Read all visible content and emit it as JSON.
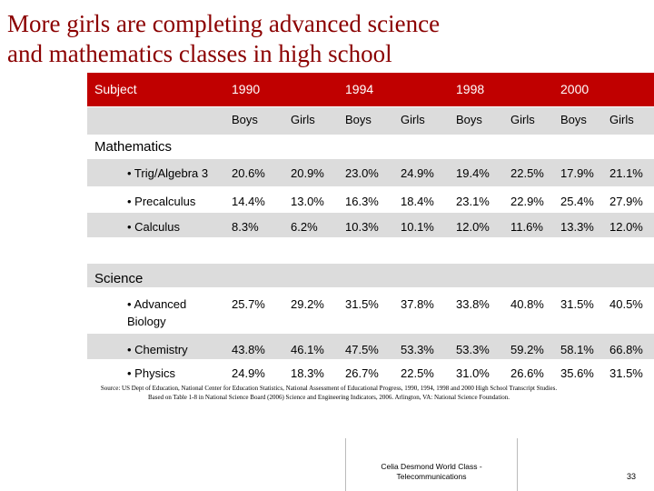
{
  "title": {
    "line1": "More girls are completing advanced science",
    "line2": "and mathematics classes in high school"
  },
  "table": {
    "subject_header": "Subject",
    "years": [
      "1990",
      "1994",
      "1998",
      "2000"
    ],
    "sex_headers": [
      "Boys",
      "Girls",
      "Boys",
      "Girls",
      "Boys",
      "Girls",
      "Boys",
      "Girls"
    ],
    "sections": [
      {
        "name": "Mathematics",
        "rows": [
          {
            "label": "• Trig/Algebra 3",
            "values": [
              "20.6%",
              "20.9%",
              "23.0%",
              "24.9%",
              "19.4%",
              "22.5%",
              "17.9%",
              "21.1%"
            ]
          },
          {
            "label": "• Precalculus",
            "values": [
              "14.4%",
              "13.0%",
              "16.3%",
              "18.4%",
              "23.1%",
              "22.9%",
              "25.4%",
              "27.9%"
            ]
          },
          {
            "label": "• Calculus",
            "values": [
              "8.3%",
              "6.2%",
              "10.3%",
              "10.1%",
              "12.0%",
              "11.6%",
              "13.3%",
              "12.0%"
            ]
          }
        ]
      },
      {
        "name": "Science",
        "rows": [
          {
            "label": "• Advanced Biology",
            "values": [
              "25.7%",
              "29.2%",
              "31.5%",
              "37.8%",
              "33.8%",
              "40.8%",
              "31.5%",
              "40.5%"
            ]
          },
          {
            "label": "• Chemistry",
            "values": [
              "43.8%",
              "46.1%",
              "47.5%",
              "53.3%",
              "53.3%",
              "59.2%",
              "58.1%",
              "66.8%"
            ]
          },
          {
            "label": "• Physics",
            "values": [
              "24.9%",
              "18.3%",
              "26.7%",
              "22.5%",
              "31.0%",
              "26.6%",
              "35.6%",
              "31.5%"
            ]
          }
        ]
      }
    ]
  },
  "source": {
    "line1": "Source: US Dept of Education, National Center for Education Statistics, National Assessment of Educational Progress, 1990, 1994, 1998 and 2000 High School Transcript Studies.",
    "line2": "Based on Table 1-8 in National Science Board (2006) Science and Engineering Indicators, 2006. Arlington, VA: National Science Foundation."
  },
  "footer": {
    "line1": "Celia Desmond World Class -",
    "line2": "Telecommunications"
  },
  "page_number": "33",
  "colors": {
    "header_band": "#c00000",
    "title_text": "#8b0000",
    "row_even": "#dcdcdc",
    "row_odd": "#ffffff"
  }
}
